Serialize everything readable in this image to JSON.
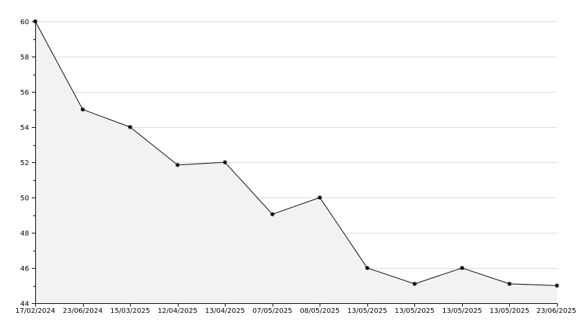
{
  "chart_data": {
    "type": "area",
    "title": "",
    "xlabel": "",
    "ylabel": "",
    "x": [
      "17/02/2024",
      "23/06/2024",
      "15/03/2025",
      "12/04/2025",
      "13/04/2025",
      "07/05/2025",
      "08/05/2025",
      "13/05/2025",
      "13/05/2025",
      "13/05/2025",
      "13/05/2025",
      "23/06/2025"
    ],
    "series": [
      {
        "values": [
          60,
          55,
          54,
          51.85,
          52,
          49.05,
          50,
          46,
          45.1,
          46,
          45.1,
          45
        ]
      }
    ],
    "ylim": [
      44,
      60
    ],
    "yticks": [
      44,
      46,
      48,
      50,
      52,
      54,
      56,
      58,
      60
    ],
    "grid": true,
    "legend": "none",
    "colors": {
      "line": "#000000",
      "fill": "#f2f2f2",
      "grid": "#d9d9d9",
      "axis": "#000000"
    }
  }
}
